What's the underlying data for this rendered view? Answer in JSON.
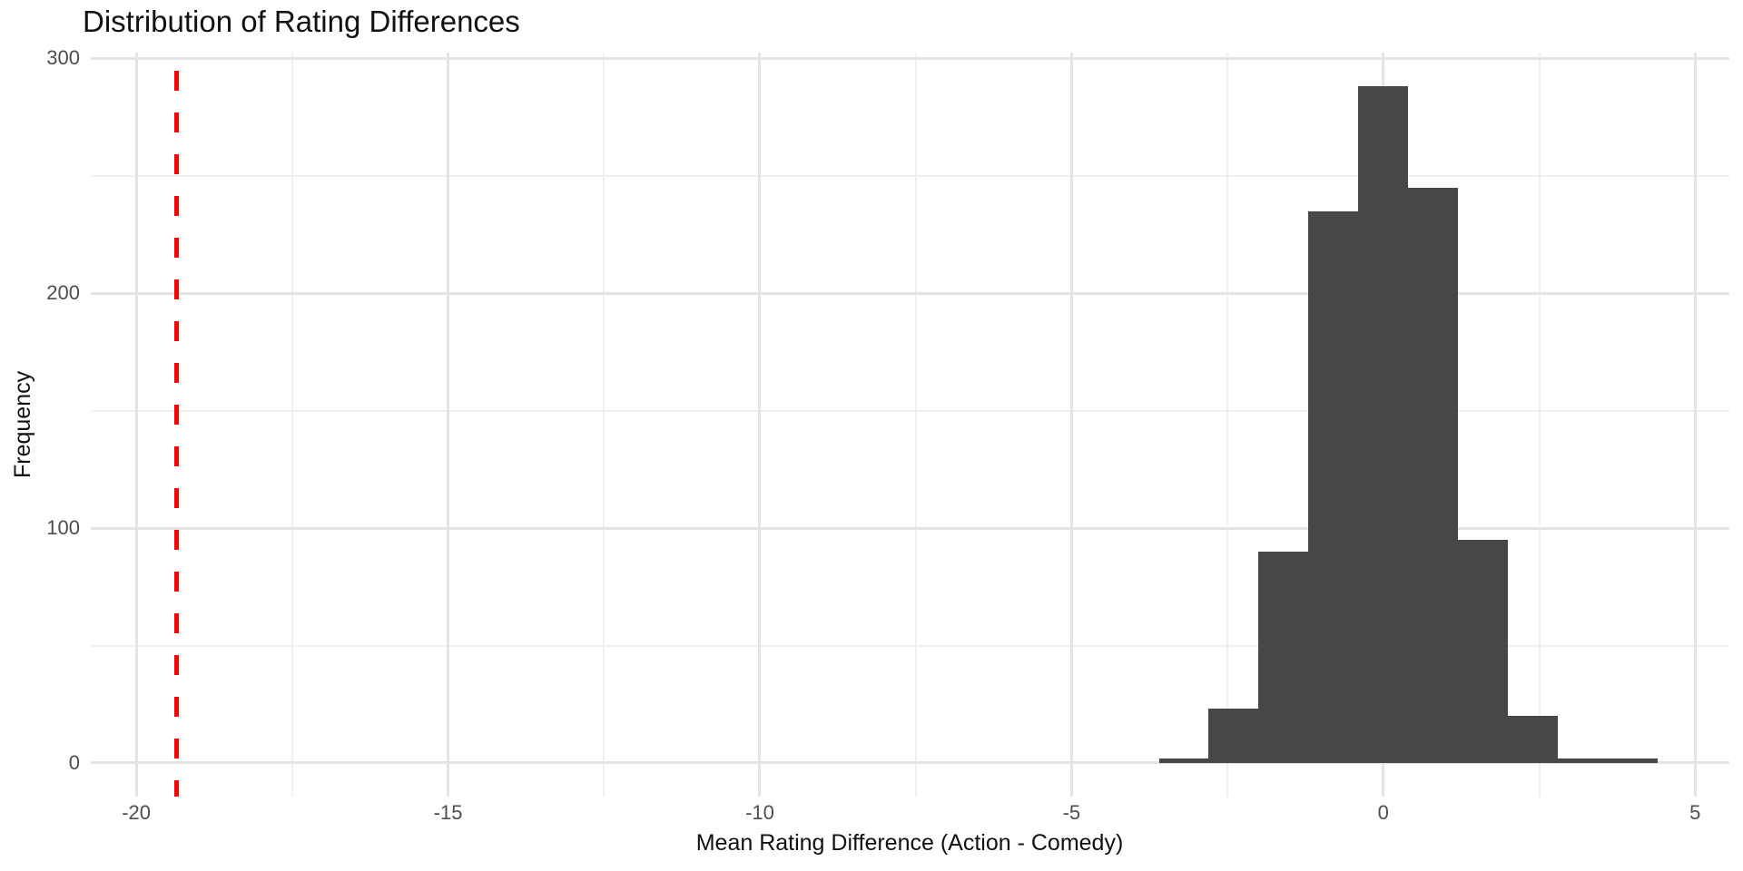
{
  "chart_data": {
    "type": "histogram",
    "title": "Distribution of Rating Differences",
    "xlabel": "Mean Rating Difference (Action - Comedy)",
    "ylabel": "Frequency",
    "bin_edges": [
      -3.6,
      -2.8,
      -2.0,
      -1.2,
      -0.4,
      0.4,
      1.2,
      2.0,
      2.8,
      3.6,
      4.4
    ],
    "counts": [
      2,
      23,
      90,
      235,
      288,
      245,
      95,
      20,
      2,
      2
    ],
    "x_ticks": [
      -20,
      -15,
      -10,
      -5,
      0,
      5
    ],
    "x_tick_labels": [
      "-20",
      "-15",
      "-10",
      "-5",
      "0",
      "5"
    ],
    "x_minor_ticks": [
      -17.5,
      -12.5,
      -7.5,
      -2.5,
      2.5
    ],
    "y_ticks": [
      0,
      100,
      200,
      300
    ],
    "y_tick_labels": [
      "0",
      "100",
      "200",
      "300"
    ],
    "y_minor_ticks": [
      50,
      150,
      250
    ],
    "xlim": [
      -20.73,
      5.55
    ],
    "ylim": [
      -14.3,
      302.4
    ],
    "grid": true,
    "legend": false,
    "reference_line": {
      "x": -19.35,
      "style": "dashed",
      "color": "#FF0000"
    },
    "colors": {
      "bar": "#474747",
      "grid_major": "#E4E4E4",
      "grid_minor": "#F0F0F0",
      "tick_label": "#4D4D4D",
      "text": "#111111",
      "background": "#FFFFFF"
    }
  }
}
